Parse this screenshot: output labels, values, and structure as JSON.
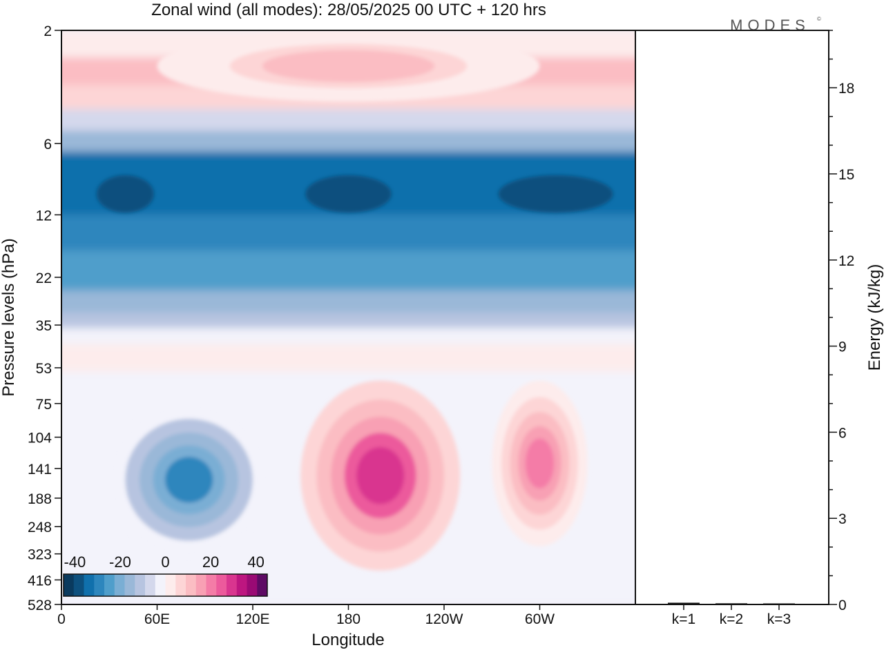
{
  "chart_data": [
    {
      "type": "heatmap",
      "title": "Zonal wind (all modes):  28/05/2025  00 UTC  + 120 hrs",
      "xlabel": "Longitude",
      "ylabel": "Pressure levels (hPa)",
      "x_ticks": [
        "0",
        "60E",
        "120E",
        "180",
        "120W",
        "60W"
      ],
      "x_tick_degrees": [
        0,
        60,
        120,
        180,
        240,
        300
      ],
      "xlim_degrees": [
        0,
        360
      ],
      "y_ticks": [
        "2",
        "6",
        "12",
        "22",
        "35",
        "53",
        "75",
        "104",
        "141",
        "188",
        "248",
        "323",
        "416",
        "528"
      ],
      "y_scale": "log, inverted (528 hPa at bottom)",
      "colorbar": {
        "ticks": [
          "-40",
          "-20",
          "0",
          "20",
          "40"
        ],
        "tick_values": [
          -40,
          -20,
          0,
          20,
          40
        ],
        "range": [
          -45,
          45
        ],
        "placement": "bottom-left, inside plot",
        "colors": [
          "#0a3a5e",
          "#0d507e",
          "#1070ac",
          "#2d86bd",
          "#4f9ecb",
          "#7aaed4",
          "#9ab8d8",
          "#b7c4e0",
          "#d4d8ec",
          "#f3f3fb",
          "#fdecec",
          "#fdd5d6",
          "#fbbdc3",
          "#f8a0b4",
          "#f47ca7",
          "#ec5a9c",
          "#d9358f",
          "#bd1680",
          "#9a0a74",
          "#5e0a64"
        ]
      },
      "features": [
        {
          "description": "Upper easterly band",
          "pressure_hpa": [
            6,
            35
          ],
          "longitude_deg": [
            0,
            360
          ],
          "value_ms": -30
        },
        {
          "description": "Core easterly maxima",
          "pressure_hpa": [
            8,
            12
          ],
          "longitude_deg": [
            0,
            360
          ],
          "value_ms": -38
        },
        {
          "description": "Stratopause westerlies",
          "pressure_hpa": [
            2,
            4
          ],
          "longitude_deg": [
            60,
            300
          ],
          "value_ms": 12
        },
        {
          "description": "Easterly jet over Asia",
          "pressure_hpa": [
            75,
            330
          ],
          "longitude_deg": [
            30,
            130
          ],
          "value_ms": -28
        },
        {
          "description": "Westerly jet over central Pacific",
          "pressure_hpa": [
            60,
            380
          ],
          "longitude_deg": [
            150,
            250
          ],
          "value_ms": 30
        },
        {
          "description": "Westerly jet over eastern Pacific",
          "pressure_hpa": [
            60,
            300
          ],
          "longitude_deg": [
            270,
            330
          ],
          "value_ms": 22
        }
      ]
    },
    {
      "type": "bar",
      "ylabel": "Energy (kJ/kg)",
      "categories": [
        "k=1",
        "k=2",
        "k=3"
      ],
      "values": [
        0.06,
        0.04,
        0.03
      ],
      "ylim": [
        0,
        20
      ],
      "y_ticks": [
        "0",
        "3",
        "6",
        "9",
        "12",
        "15",
        "18"
      ],
      "y_tick_values": [
        0,
        3,
        6,
        9,
        12,
        15,
        18
      ],
      "y_axis_side": "right"
    }
  ],
  "logo": {
    "text": "MODES",
    "mark": "©"
  }
}
